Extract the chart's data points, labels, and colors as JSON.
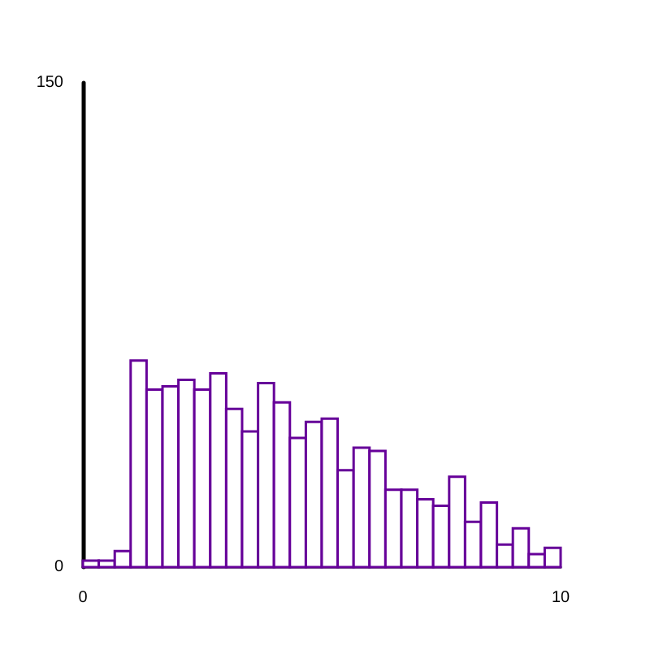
{
  "chart_data": {
    "type": "histogram",
    "bins": [
      0,
      0.333,
      0.667,
      1,
      1.333,
      1.667,
      2,
      2.333,
      2.667,
      3,
      3.333,
      3.667,
      4,
      4.333,
      4.667,
      5,
      5.333,
      5.667,
      6,
      6.333,
      6.667,
      7,
      7.333,
      7.667,
      8,
      8.333,
      8.667,
      9,
      9.333,
      9.667,
      10
    ],
    "values": [
      2,
      2,
      5,
      64,
      55,
      56,
      58,
      55,
      60,
      49,
      42,
      57,
      51,
      40,
      45,
      46,
      30,
      37,
      36,
      24,
      24,
      21,
      19,
      28,
      14,
      20,
      7,
      12,
      4,
      6
    ],
    "color": "#660099",
    "xlim": [
      0,
      10
    ],
    "xticks": [
      0,
      10
    ],
    "ylim": [
      0,
      150
    ],
    "yticks": [
      0,
      150
    ],
    "grid": false
  }
}
